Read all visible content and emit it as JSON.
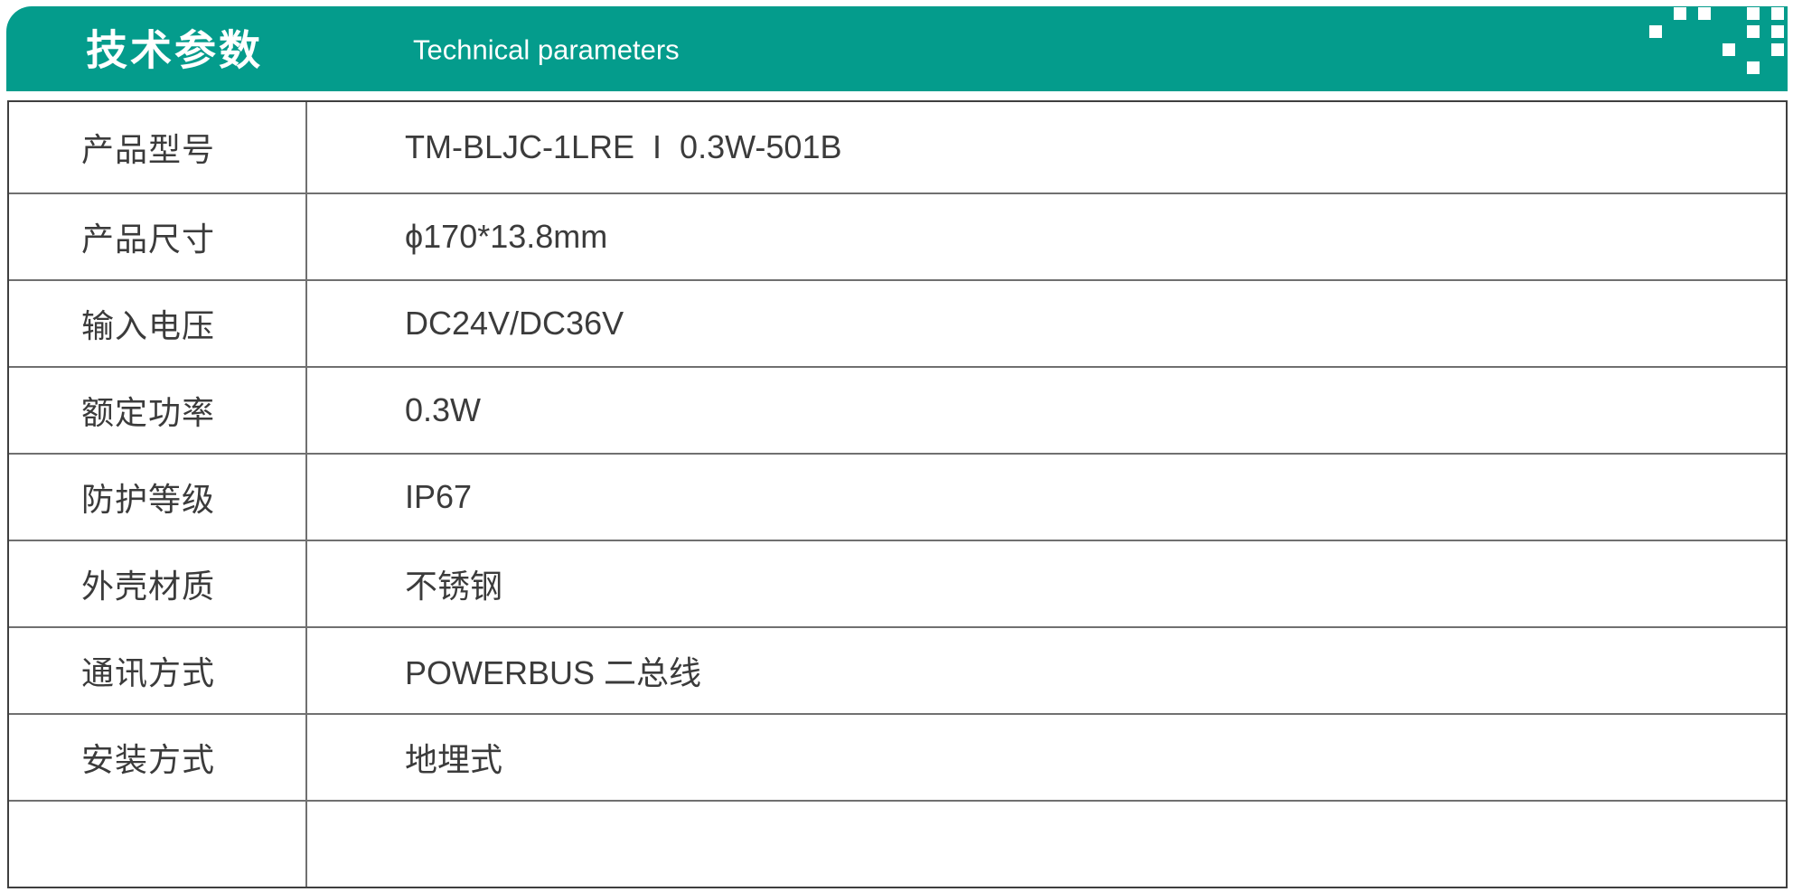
{
  "header": {
    "title": "技术参数",
    "subtitle": "Technical parameters",
    "accent_color": "#049c8c"
  },
  "decor": {
    "name": "pixel-squares",
    "color": "#ffffff",
    "grid": [
      [
        0,
        1,
        1,
        0,
        1,
        1
      ],
      [
        1,
        0,
        0,
        0,
        1,
        1
      ],
      [
        0,
        0,
        0,
        1,
        0,
        1
      ],
      [
        0,
        0,
        0,
        0,
        1,
        0
      ]
    ]
  },
  "table": {
    "rows": [
      {
        "label": "产品型号",
        "value": "TM-BLJC-1LRE  I  0.3W-501B"
      },
      {
        "label": "产品尺寸",
        "value": "ϕ170*13.8mm"
      },
      {
        "label": "输入电压",
        "value": "DC24V/DC36V"
      },
      {
        "label": "额定功率",
        "value": "0.3W"
      },
      {
        "label": "防护等级",
        "value": "IP67"
      },
      {
        "label": "外壳材质",
        "value": "不锈钢"
      },
      {
        "label": "通讯方式",
        "value": "POWERBUS 二总线"
      },
      {
        "label": "安装方式",
        "value": "地埋式"
      },
      {
        "label": "",
        "value": ""
      }
    ]
  }
}
